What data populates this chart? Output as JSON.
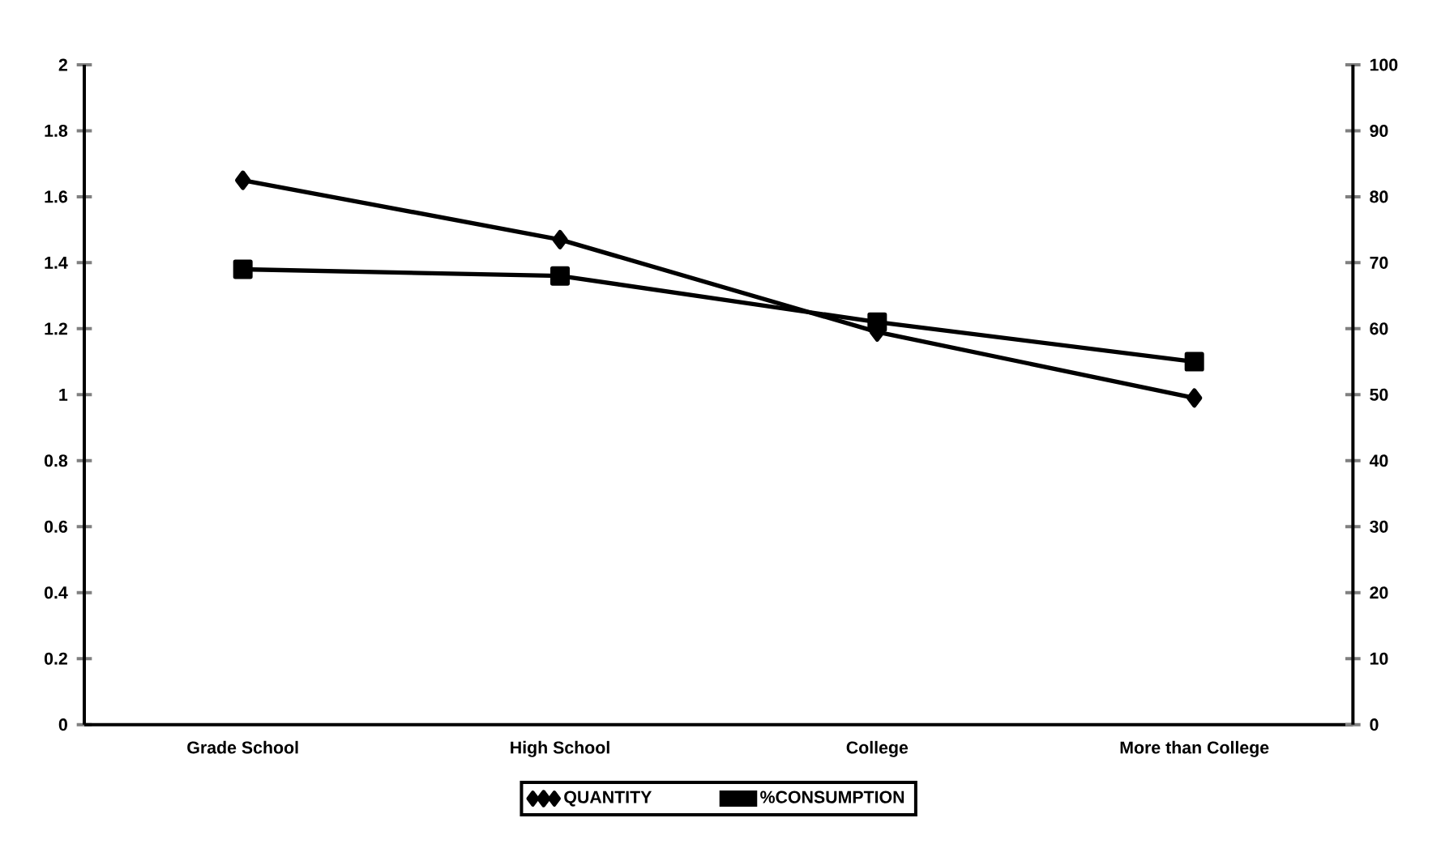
{
  "chart_data": {
    "type": "line",
    "categories": [
      "Grade School",
      "High School",
      "College",
      "More than College"
    ],
    "series": [
      {
        "name": "QUANTITY",
        "color": "#000000",
        "values": [
          1.65,
          1.47,
          1.19,
          0.99
        ],
        "marker": "diamond"
      },
      {
        "name": "%CONSUMPTION",
        "color": "#000000",
        "values": [
          69,
          68,
          61,
          55
        ],
        "marker": "square",
        "axis": "y2"
      }
    ],
    "ylim": [
      0,
      2
    ],
    "yticks": [
      0,
      0.2,
      0.4,
      0.6,
      0.8,
      1,
      1.2,
      1.4,
      1.6,
      1.8,
      2
    ],
    "y2lim": [
      0,
      100
    ],
    "y2ticks": [
      0,
      10,
      20,
      30,
      40,
      50,
      60,
      70,
      80,
      90,
      100
    ],
    "legend": "bottom",
    "grid": false
  }
}
